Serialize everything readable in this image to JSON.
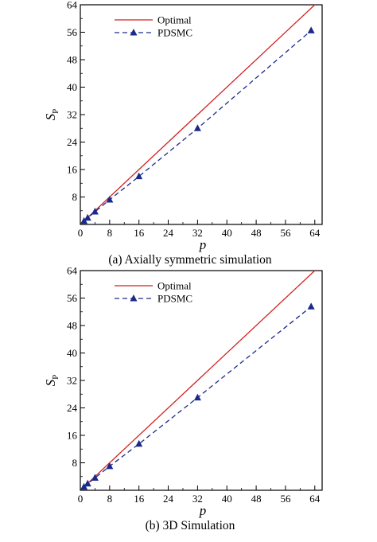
{
  "chart_data": [
    {
      "type": "line",
      "caption": "(a) Axially symmetric simulation",
      "xlabel": "p",
      "ylabel": "S",
      "ylabel_sub": "P",
      "xlim": [
        0,
        66
      ],
      "ylim": [
        0,
        64
      ],
      "xticks": [
        "0",
        "8",
        "16",
        "24",
        "32",
        "40",
        "48",
        "56",
        "64"
      ],
      "yticks": [
        "8",
        "16",
        "24",
        "32",
        "40",
        "48",
        "56",
        "64"
      ],
      "legend": "top-left",
      "grid": false,
      "series": [
        {
          "name": "Optimal",
          "color": "#d22222",
          "style": "solid",
          "marker": "none",
          "x": [
            1,
            64
          ],
          "y": [
            1,
            64
          ]
        },
        {
          "name": "PDSMC",
          "color": "#1a2a8a",
          "style": "dashed",
          "marker": "triangle",
          "x": [
            1,
            2,
            4,
            8,
            16,
            32,
            63
          ],
          "y": [
            1,
            1.9,
            3.7,
            7.2,
            14,
            28,
            56.5
          ]
        }
      ]
    },
    {
      "type": "line",
      "caption": "(b) 3D Simulation",
      "xlabel": "p",
      "ylabel": "S",
      "ylabel_sub": "P",
      "xlim": [
        0,
        66
      ],
      "ylim": [
        0,
        64
      ],
      "xticks": [
        "0",
        "8",
        "16",
        "24",
        "32",
        "40",
        "48",
        "56",
        "64"
      ],
      "yticks": [
        "8",
        "16",
        "24",
        "32",
        "40",
        "48",
        "56",
        "64"
      ],
      "legend": "top-left",
      "grid": false,
      "series": [
        {
          "name": "Optimal",
          "color": "#d22222",
          "style": "solid",
          "marker": "none",
          "x": [
            1,
            64
          ],
          "y": [
            1,
            64
          ]
        },
        {
          "name": "PDSMC",
          "color": "#1a2a8a",
          "style": "dashed",
          "marker": "triangle",
          "x": [
            1,
            2,
            4,
            8,
            16,
            32,
            63
          ],
          "y": [
            1,
            1.9,
            3.6,
            7,
            13.5,
            27,
            53.5
          ]
        }
      ]
    }
  ]
}
